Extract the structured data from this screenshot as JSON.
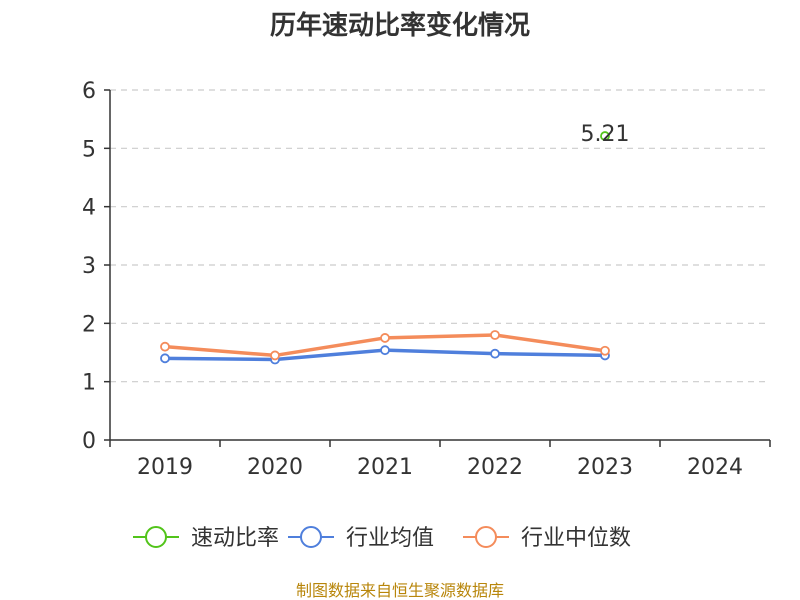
{
  "chart_data": {
    "type": "line",
    "title": "历年速动比率变化情况",
    "categories": [
      "2019",
      "2020",
      "2021",
      "2022",
      "2023",
      "2024"
    ],
    "ylim": [
      0,
      6
    ],
    "yticks": [
      "0",
      "1",
      "2",
      "3",
      "4",
      "5",
      "6"
    ],
    "grid": true,
    "legend_position": "bottom",
    "series": [
      {
        "name": "速动比率",
        "color": "#52c41a",
        "values": [
          null,
          null,
          null,
          null,
          5.21,
          null
        ],
        "labels": [
          null,
          null,
          null,
          null,
          "5.21",
          null
        ]
      },
      {
        "name": "行业均值",
        "color": "#4f7fdc",
        "values": [
          1.4,
          1.38,
          1.54,
          1.48,
          1.45,
          null
        ]
      },
      {
        "name": "行业中位数",
        "color": "#f48c5b",
        "values": [
          1.6,
          1.45,
          1.75,
          1.8,
          1.53,
          null
        ]
      }
    ]
  },
  "source": "制图数据来自恒生聚源数据库"
}
